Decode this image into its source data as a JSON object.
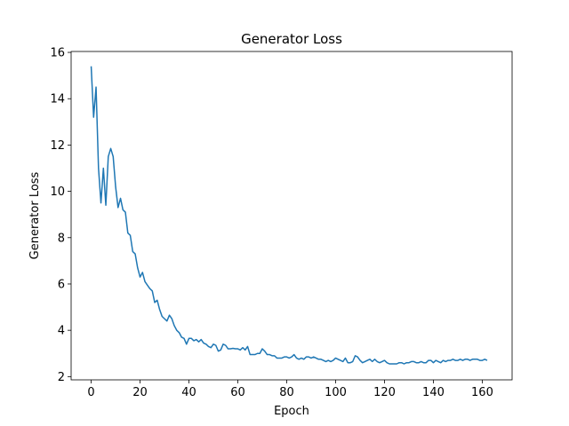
{
  "chart_data": {
    "type": "line",
    "title": "Generator Loss",
    "x_label": "Epoch",
    "y_label": "Generator Loss",
    "series": [
      {
        "name": "Generator Loss",
        "color": "#1f77b4",
        "values": [
          15.4,
          13.2,
          14.5,
          11.0,
          9.5,
          11.0,
          9.4,
          11.5,
          11.85,
          11.5,
          10.2,
          9.3,
          9.7,
          9.2,
          9.1,
          8.2,
          8.1,
          7.4,
          7.3,
          6.7,
          6.3,
          6.5,
          6.1,
          5.95,
          5.8,
          5.7,
          5.2,
          5.3,
          4.9,
          4.6,
          4.5,
          4.4,
          4.65,
          4.5,
          4.2,
          4.0,
          3.9,
          3.7,
          3.65,
          3.4,
          3.65,
          3.65,
          3.55,
          3.6,
          3.5,
          3.6,
          3.45,
          3.4,
          3.3,
          3.25,
          3.4,
          3.35,
          3.1,
          3.15,
          3.4,
          3.35,
          3.2,
          3.2,
          3.22,
          3.2,
          3.2,
          3.15,
          3.25,
          3.15,
          3.3,
          2.95,
          2.95,
          2.95,
          3.0,
          3.0,
          3.2,
          3.1,
          2.95,
          2.95,
          2.9,
          2.9,
          2.8,
          2.8,
          2.8,
          2.85,
          2.85,
          2.8,
          2.85,
          2.95,
          2.8,
          2.75,
          2.8,
          2.75,
          2.85,
          2.85,
          2.8,
          2.85,
          2.8,
          2.75,
          2.75,
          2.7,
          2.65,
          2.7,
          2.65,
          2.7,
          2.8,
          2.75,
          2.7,
          2.65,
          2.8,
          2.6,
          2.6,
          2.65,
          2.9,
          2.85,
          2.7,
          2.6,
          2.65,
          2.7,
          2.75,
          2.65,
          2.75,
          2.65,
          2.6,
          2.65,
          2.7,
          2.6,
          2.55,
          2.55,
          2.55,
          2.55,
          2.6,
          2.6,
          2.55,
          2.6,
          2.6,
          2.65,
          2.65,
          2.6,
          2.6,
          2.65,
          2.6,
          2.6,
          2.7,
          2.7,
          2.6,
          2.7,
          2.65,
          2.6,
          2.7,
          2.65,
          2.7,
          2.7,
          2.75,
          2.7,
          2.7,
          2.75,
          2.7,
          2.75,
          2.75,
          2.7,
          2.75,
          2.75,
          2.75,
          2.7,
          2.7,
          2.75,
          2.7
        ]
      }
    ],
    "xlim": [
      -8.2,
      172.2
    ],
    "ylim": [
      1.86,
      16.04
    ],
    "xticks": [
      0,
      20,
      40,
      60,
      80,
      100,
      120,
      140,
      160
    ],
    "yticks": [
      2,
      4,
      6,
      8,
      10,
      12,
      14,
      16
    ]
  }
}
